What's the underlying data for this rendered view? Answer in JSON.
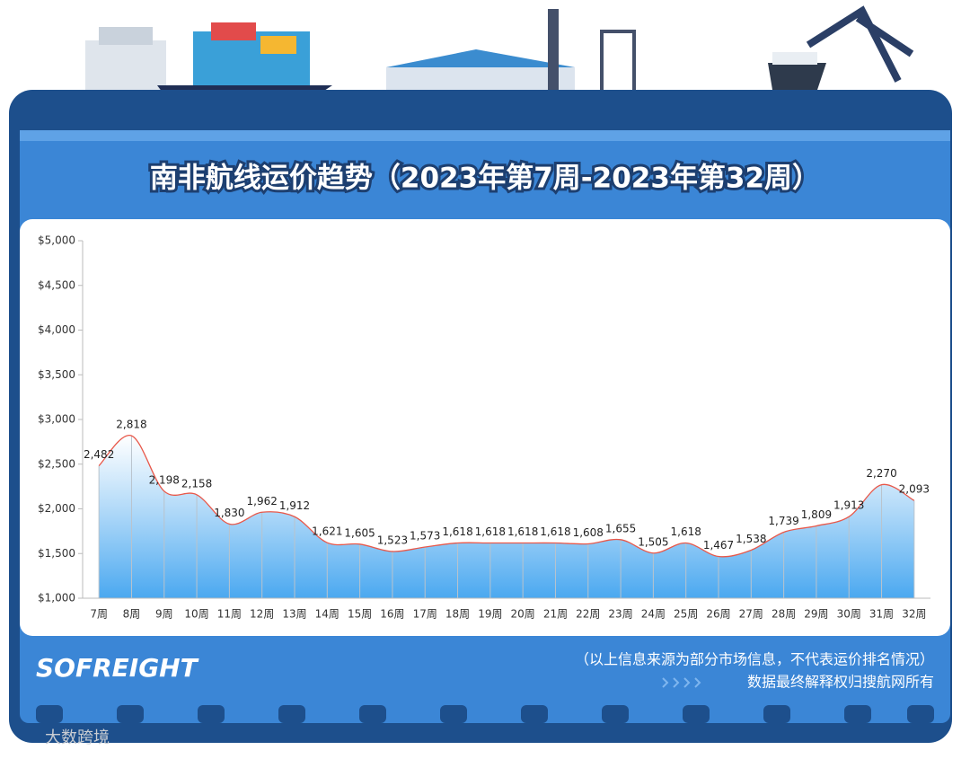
{
  "chart_data": {
    "type": "area",
    "title": "南非航线运价趋势（2023年第7周-2023年第32周）",
    "categories": [
      "7周",
      "8周",
      "9周",
      "10周",
      "11周",
      "12周",
      "13周",
      "14周",
      "15周",
      "16周",
      "17周",
      "18周",
      "19周",
      "20周",
      "21周",
      "22周",
      "23周",
      "24周",
      "25周",
      "26周",
      "27周",
      "28周",
      "29周",
      "30周",
      "31周",
      "32周"
    ],
    "values": [
      2482,
      2818,
      2198,
      2158,
      1830,
      1962,
      1912,
      1621,
      1605,
      1523,
      1573,
      1618,
      1618,
      1618,
      1618,
      1608,
      1655,
      1505,
      1618,
      1467,
      1538,
      1739,
      1809,
      1913,
      2270,
      2093
    ],
    "value_labels": [
      "2,482",
      "2,818",
      "2,198",
      "2,158",
      "1,830",
      "1,962",
      "1,912",
      "1,621",
      "1,605",
      "1,523",
      "1,573",
      "1,618",
      "1,618",
      "1,618",
      "1,618",
      "1,608",
      "1,655",
      "1,505",
      "1,618",
      "1,467",
      "1,538",
      "1,739",
      "1,809",
      "1,913",
      "2,270",
      "2,093"
    ],
    "color": "#e8584a",
    "fill": "#4aa8f0",
    "ylim": [
      1000,
      5000
    ],
    "yticks": [
      {
        "value": 1000,
        "label": "$1,000"
      },
      {
        "value": 1500,
        "label": "$1,500"
      },
      {
        "value": 2000,
        "label": "$2,000"
      },
      {
        "value": 2500,
        "label": "$2,500"
      },
      {
        "value": 3000,
        "label": "$3,000"
      },
      {
        "value": 3500,
        "label": "$3,500"
      },
      {
        "value": 4000,
        "label": "$4,000"
      },
      {
        "value": 4500,
        "label": "$4,500"
      },
      {
        "value": 5000,
        "label": "$5,000"
      }
    ],
    "grid": false
  },
  "logo": "SOFREIGHT",
  "footer": {
    "note": "（以上信息来源为部分市场信息，不代表运价排名情况）",
    "rights": "数据最终解释权归搜航网所有"
  },
  "watermark": "大数跨境"
}
